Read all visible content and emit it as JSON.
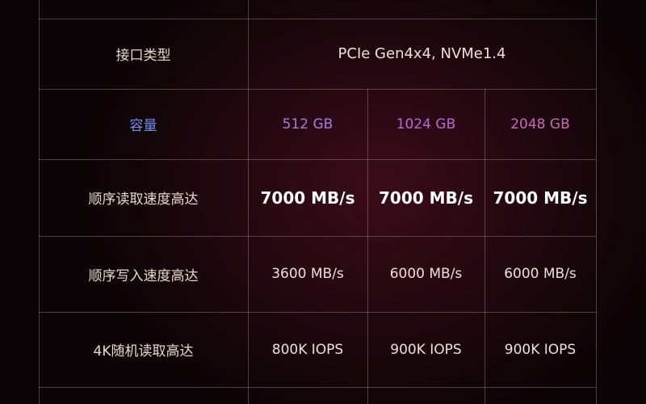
{
  "colors": {
    "label_text": "#e8d8c8",
    "capacity_label": "#6f8ff0",
    "cap_512": "#a878e8",
    "cap_1024": "#b868d8",
    "cap_2048": "#c868b8"
  },
  "rows": {
    "interface": {
      "label": "接口类型",
      "value": "PCIe Gen4x4, NVMe1.4"
    },
    "capacity": {
      "label": "容量",
      "values": [
        "512 GB",
        "1024 GB",
        "2048 GB"
      ]
    },
    "seq_read": {
      "label": "顺序读取速度高达",
      "values": [
        "7000 MB/s",
        "7000 MB/s",
        "7000 MB/s"
      ]
    },
    "seq_write": {
      "label": "顺序写入速度高达",
      "values": [
        "3600 MB/s",
        "6000 MB/s",
        "6000 MB/s"
      ]
    },
    "random_read_4k": {
      "label": "4K随机读取高达",
      "values": [
        "800K IOPS",
        "900K IOPS",
        "900K IOPS"
      ]
    }
  }
}
